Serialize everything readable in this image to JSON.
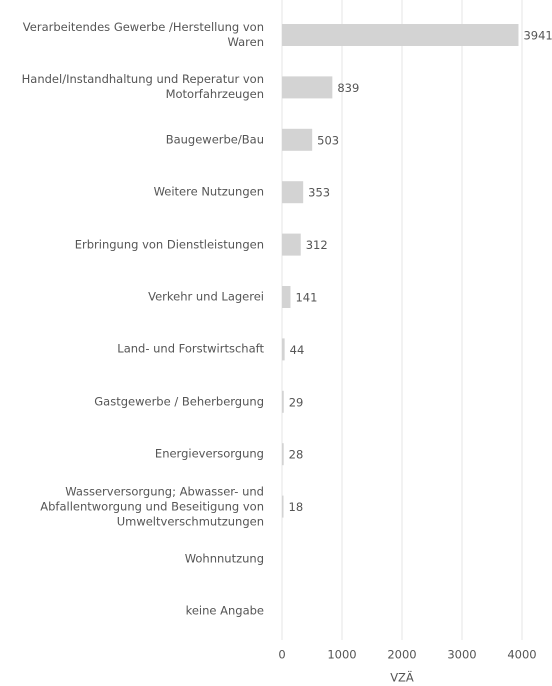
{
  "chart_data": {
    "type": "bar",
    "orientation": "horizontal",
    "categories": [
      "Verarbeitendes Gewerbe /Herstellung von\nWaren",
      "Handel/Instandhaltung und Reperatur von\nMotorfahrzeugen",
      "Baugewerbe/Bau",
      "Weitere Nutzungen",
      "Erbringung von Dienstleistungen",
      "Verkehr und Lagerei",
      "Land- und Forstwirtschaft",
      "Gastgewerbe / Beherbergung",
      "Energieversorgung",
      "Wasserversorgung; Abwasser- und\nAbfallentworgung und Beseitigung von\nUmweltverschmutzungen",
      "Wohnnutzung",
      "keine Angabe"
    ],
    "values": [
      3941,
      839,
      503,
      353,
      312,
      141,
      44,
      29,
      28,
      18,
      null,
      null
    ],
    "color": "#d3d3d3",
    "xlim": [
      0,
      4000
    ],
    "xticks": [
      0,
      1000,
      2000,
      3000,
      4000
    ],
    "xlabel": "VZÄ",
    "grid": true
  }
}
